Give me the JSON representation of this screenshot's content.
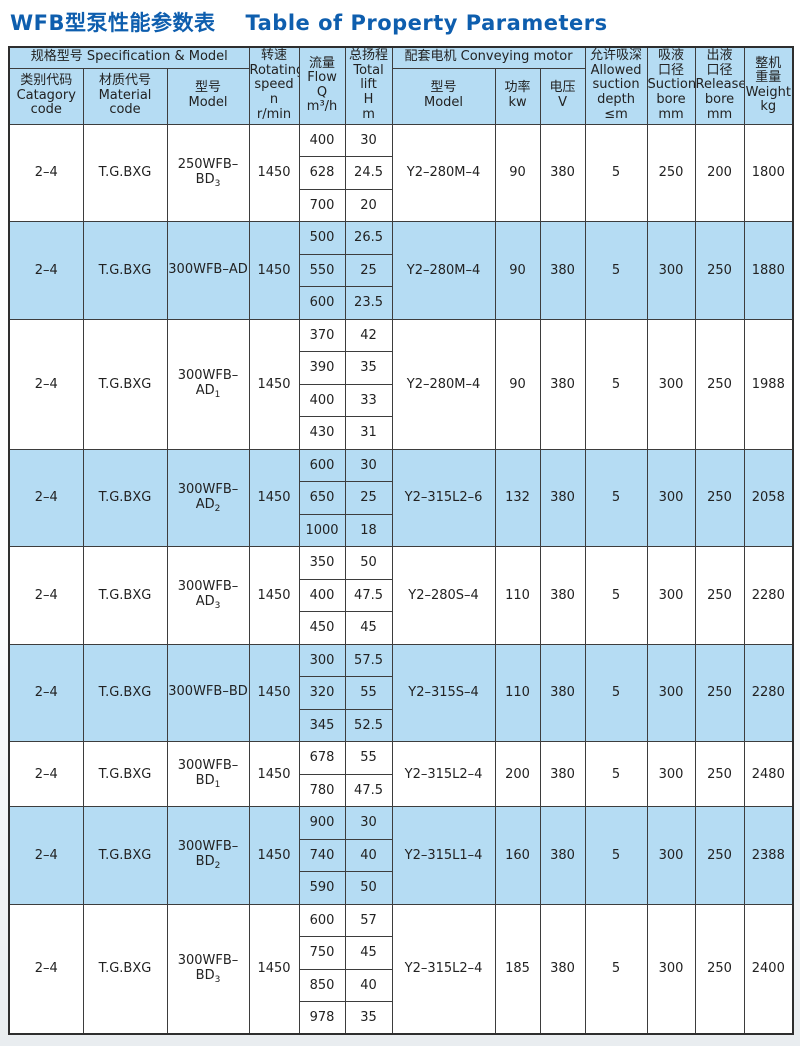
{
  "title": {
    "zh": "WFB型泵性能参数表",
    "en": "Table of Property Parameters"
  },
  "colors": {
    "title_blue": "#0e5eae",
    "stripe_blue": "#b5dcf3",
    "border": "#3d3d3d"
  },
  "table": {
    "header": {
      "spec_group": "规格型号 Specification & Model",
      "category": "类别代码\nCatagory\ncode",
      "material": "材质代号\nMaterial code",
      "model": "型号\nModel",
      "speed": "转速\nRotating\nspeed n\nr/min",
      "flow": "流量\nFlow\nQ\nm³/h",
      "lift": "总扬程\nTotal\nlift\nH\nm",
      "motor_group": "配套电机 Conveying motor",
      "motor_model": "型号\nModel",
      "power": "功率\nkw",
      "voltage": "电压\nV",
      "depth": "允许吸深\nAllowed\nsuction\ndepth\n≤m",
      "suction_bore": "吸液\n口径\nSuction\nbore\nmm",
      "release_bore": "出液\n口径\nRelease\nbore\nmm",
      "weight": "整机\n重量\nWeight\nkg"
    },
    "rows": [
      {
        "category": "2–4",
        "material": "T.G.BXG",
        "model_base": "250WFB–BD",
        "model_sub": "3",
        "speed": "1450",
        "flow_lift": [
          [
            "400",
            "30"
          ],
          [
            "628",
            "24.5"
          ],
          [
            "700",
            "20"
          ]
        ],
        "motor": "Y2–280M–4",
        "power": "90",
        "voltage": "380",
        "depth": "5",
        "suction": "250",
        "release": "200",
        "weight": "1800",
        "shaded": false
      },
      {
        "category": "2–4",
        "material": "T.G.BXG",
        "model_base": "300WFB–AD",
        "model_sub": "",
        "speed": "1450",
        "flow_lift": [
          [
            "500",
            "26.5"
          ],
          [
            "550",
            "25"
          ],
          [
            "600",
            "23.5"
          ]
        ],
        "motor": "Y2–280M–4",
        "power": "90",
        "voltage": "380",
        "depth": "5",
        "suction": "300",
        "release": "250",
        "weight": "1880",
        "shaded": true
      },
      {
        "category": "2–4",
        "material": "T.G.BXG",
        "model_base": "300WFB–AD",
        "model_sub": "1",
        "speed": "1450",
        "flow_lift": [
          [
            "370",
            "42"
          ],
          [
            "390",
            "35"
          ],
          [
            "400",
            "33"
          ],
          [
            "430",
            "31"
          ]
        ],
        "motor": "Y2–280M–4",
        "power": "90",
        "voltage": "380",
        "depth": "5",
        "suction": "300",
        "release": "250",
        "weight": "1988",
        "shaded": false
      },
      {
        "category": "2–4",
        "material": "T.G.BXG",
        "model_base": "300WFB–AD",
        "model_sub": "2",
        "speed": "1450",
        "flow_lift": [
          [
            "600",
            "30"
          ],
          [
            "650",
            "25"
          ],
          [
            "1000",
            "18"
          ]
        ],
        "motor": "Y2–315L2–6",
        "power": "132",
        "voltage": "380",
        "depth": "5",
        "suction": "300",
        "release": "250",
        "weight": "2058",
        "shaded": true
      },
      {
        "category": "2–4",
        "material": "T.G.BXG",
        "model_base": "300WFB–AD",
        "model_sub": "3",
        "speed": "1450",
        "flow_lift": [
          [
            "350",
            "50"
          ],
          [
            "400",
            "47.5"
          ],
          [
            "450",
            "45"
          ]
        ],
        "motor": "Y2–280S–4",
        "power": "110",
        "voltage": "380",
        "depth": "5",
        "suction": "300",
        "release": "250",
        "weight": "2280",
        "shaded": false
      },
      {
        "category": "2–4",
        "material": "T.G.BXG",
        "model_base": "300WFB–BD",
        "model_sub": "",
        "speed": "1450",
        "flow_lift": [
          [
            "300",
            "57.5"
          ],
          [
            "320",
            "55"
          ],
          [
            "345",
            "52.5"
          ]
        ],
        "motor": "Y2–315S–4",
        "power": "110",
        "voltage": "380",
        "depth": "5",
        "suction": "300",
        "release": "250",
        "weight": "2280",
        "shaded": true
      },
      {
        "category": "2–4",
        "material": "T.G.BXG",
        "model_base": "300WFB–BD",
        "model_sub": "1",
        "speed": "1450",
        "flow_lift": [
          [
            "678",
            "55"
          ],
          [
            "780",
            "47.5"
          ]
        ],
        "motor": "Y2–315L2–4",
        "power": "200",
        "voltage": "380",
        "depth": "5",
        "suction": "300",
        "release": "250",
        "weight": "2480",
        "shaded": false
      },
      {
        "category": "2–4",
        "material": "T.G.BXG",
        "model_base": "300WFB–BD",
        "model_sub": "2",
        "speed": "1450",
        "flow_lift": [
          [
            "900",
            "30"
          ],
          [
            "740",
            "40"
          ],
          [
            "590",
            "50"
          ]
        ],
        "motor": "Y2–315L1–4",
        "power": "160",
        "voltage": "380",
        "depth": "5",
        "suction": "300",
        "release": "250",
        "weight": "2388",
        "shaded": true
      },
      {
        "category": "2–4",
        "material": "T.G.BXG",
        "model_base": "300WFB–BD",
        "model_sub": "3",
        "speed": "1450",
        "flow_lift": [
          [
            "600",
            "57"
          ],
          [
            "750",
            "45"
          ],
          [
            "850",
            "40"
          ],
          [
            "978",
            "35"
          ]
        ],
        "motor": "Y2–315L2–4",
        "power": "185",
        "voltage": "380",
        "depth": "5",
        "suction": "300",
        "release": "250",
        "weight": "2400",
        "shaded": false
      }
    ]
  }
}
